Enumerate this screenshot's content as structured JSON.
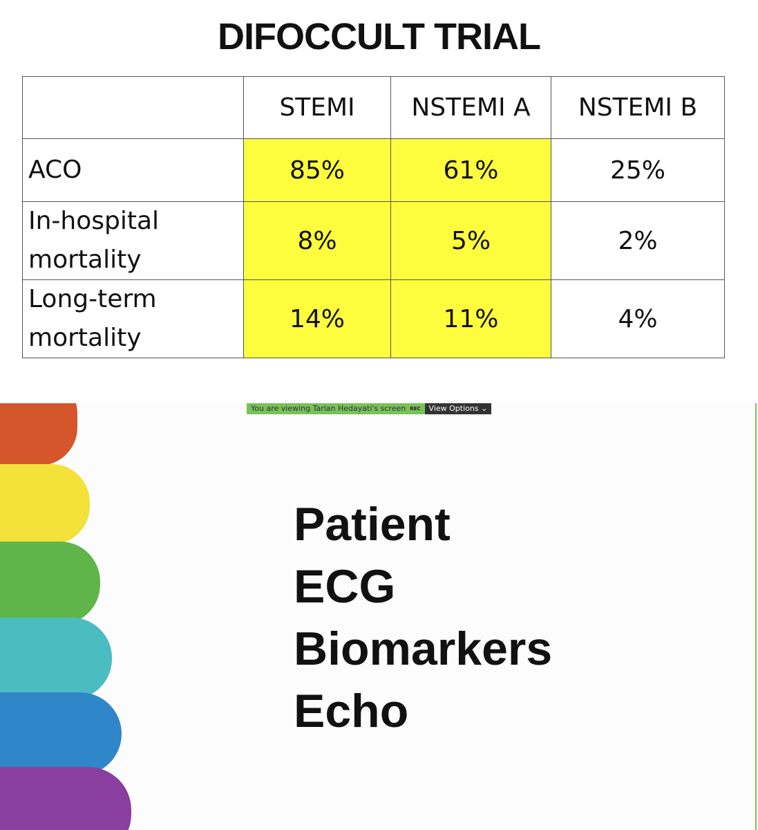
{
  "slide": {
    "title": "DIFOCCULT TRIAL",
    "table": {
      "header": [
        "",
        "STEMI",
        "NSTEMI A",
        "NSTEMI B"
      ],
      "rows": [
        [
          "ACO",
          "85%",
          "61%",
          "25%"
        ],
        [
          "In-hospital\nmortality",
          "8%",
          "5%",
          "2%"
        ],
        [
          "Long-term\nmortality",
          "14%",
          "11%",
          "4%"
        ]
      ]
    }
  },
  "screen_share": {
    "banner": "You are viewing Tarlan Hedayati's screen",
    "rec": "REC",
    "view_options": "View Options",
    "items": [
      "Patient",
      "ECG",
      "Biomarkers",
      "Echo"
    ]
  }
}
